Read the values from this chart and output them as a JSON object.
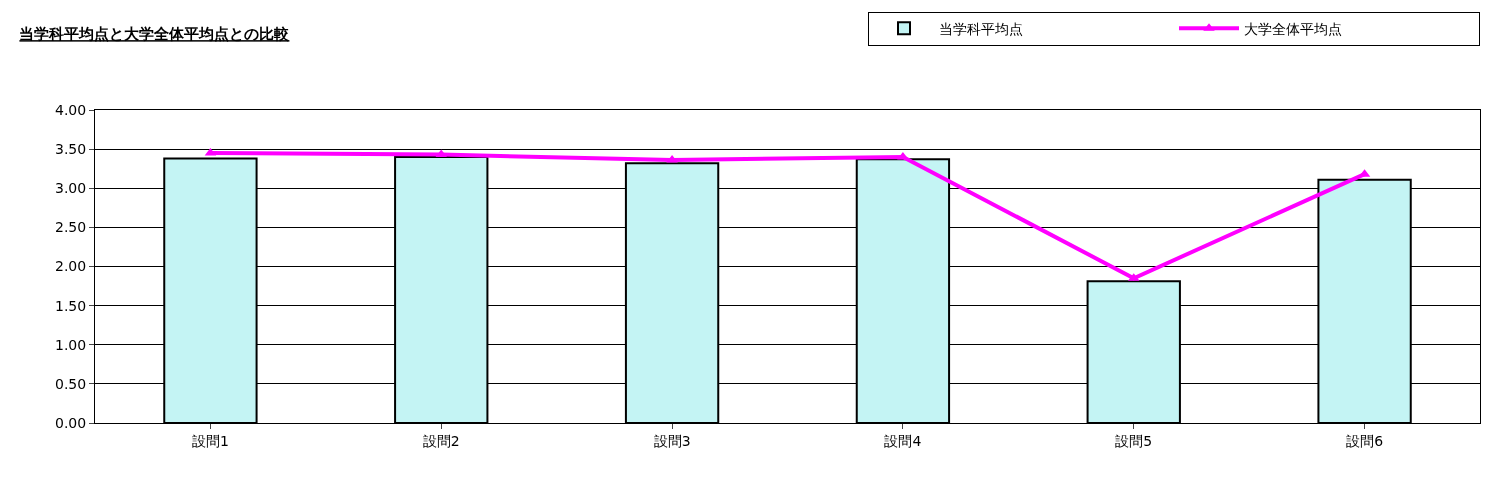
{
  "chart_data": {
    "type": "bar",
    "title": "当学科平均点と大学全体平均点との比較",
    "categories": [
      "設問1",
      "設問2",
      "設問3",
      "設問4",
      "設問5",
      "設問6"
    ],
    "series": [
      {
        "name": "当学科平均点",
        "color": "#c4f4f4",
        "values": [
          3.38,
          3.4,
          3.32,
          3.37,
          1.81,
          3.11
        ]
      },
      {
        "name": "大学全体平均点",
        "type": "line",
        "color": "#ff00ff",
        "marker": "triangle",
        "values": [
          3.45,
          3.43,
          3.36,
          3.4,
          1.85,
          3.18
        ]
      }
    ],
    "ylim": [
      0,
      4
    ],
    "yticks": [
      {
        "value": 0,
        "label": "0.00"
      },
      {
        "value": 0.5,
        "label": "0.50"
      },
      {
        "value": 1,
        "label": "1.00"
      },
      {
        "value": 1.5,
        "label": "1.50"
      },
      {
        "value": 2,
        "label": "2.00"
      },
      {
        "value": 2.5,
        "label": "2.50"
      },
      {
        "value": 3,
        "label": "3.00"
      },
      {
        "value": 3.5,
        "label": "3.50"
      },
      {
        "value": 4,
        "label": "4.00"
      }
    ],
    "grid": "y",
    "legend": "top right"
  }
}
